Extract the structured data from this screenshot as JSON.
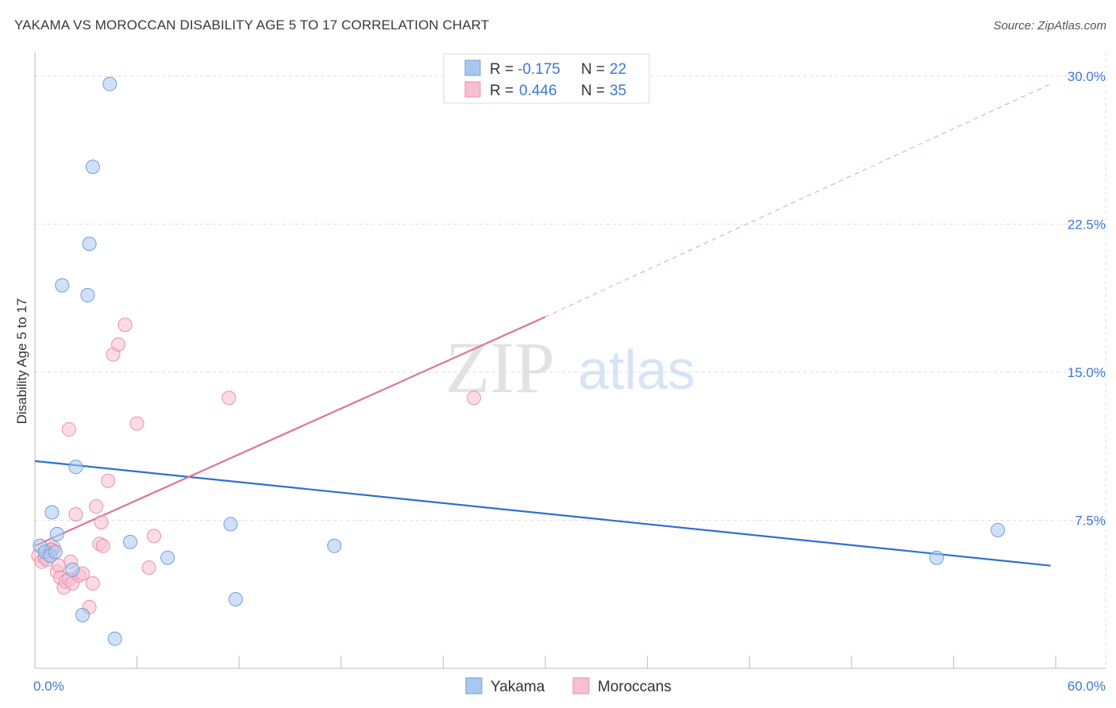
{
  "title": "YAKAMA VS MOROCCAN DISABILITY AGE 5 TO 17 CORRELATION CHART",
  "source": "Source: ZipAtlas.com",
  "watermark": {
    "zip": "ZIP",
    "atlas": "atlas"
  },
  "colors": {
    "yakama_fill": "#a9c8f0",
    "yakama_stroke": "#6d9fdc",
    "yakama_line": "#2f6fd0",
    "moroccan_fill": "#f7bfd0",
    "moroccan_stroke": "#e890ac",
    "moroccan_line": "#e0729a",
    "axis_text": "#3b78d8",
    "grid": "#dddddd"
  },
  "legend": {
    "rows": [
      {
        "r_label": "R =",
        "r_value": "-0.175",
        "n_label": "N =",
        "n_value": "22"
      },
      {
        "r_label": "R =",
        "r_value": "0.446",
        "n_label": "N =",
        "n_value": "35"
      }
    ]
  },
  "chart_data": {
    "type": "scatter",
    "title": "YAKAMA VS MOROCCAN DISABILITY AGE 5 TO 17 CORRELATION CHART",
    "xlabel": "",
    "ylabel": "Disability Age 5 to 17",
    "xlim": [
      0,
      60
    ],
    "ylim": [
      0,
      31.2
    ],
    "x_tick_labels": {
      "left": "0.0%",
      "right": "60.0%"
    },
    "y_ticks": [
      {
        "value": 7.5,
        "label": "7.5%"
      },
      {
        "value": 15.0,
        "label": "15.0%"
      },
      {
        "value": 22.5,
        "label": "22.5%"
      },
      {
        "value": 30.0,
        "label": "30.0%"
      }
    ],
    "grid": true,
    "legend_position": "top-center",
    "series": [
      {
        "name": "Yakama",
        "points": [
          [
            0.3,
            6.2
          ],
          [
            0.6,
            5.9
          ],
          [
            0.9,
            5.7
          ],
          [
            1.2,
            5.9
          ],
          [
            1.0,
            7.9
          ],
          [
            1.3,
            6.8
          ],
          [
            2.2,
            5.0
          ],
          [
            2.4,
            10.2
          ],
          [
            1.6,
            19.4
          ],
          [
            3.1,
            18.9
          ],
          [
            3.2,
            21.5
          ],
          [
            3.4,
            25.4
          ],
          [
            4.4,
            29.6
          ],
          [
            2.8,
            2.7
          ],
          [
            4.7,
            1.5
          ],
          [
            5.6,
            6.4
          ],
          [
            7.8,
            5.6
          ],
          [
            11.5,
            7.3
          ],
          [
            11.8,
            3.5
          ],
          [
            17.6,
            6.2
          ],
          [
            53.0,
            5.6
          ],
          [
            56.6,
            7.0
          ]
        ],
        "trend": {
          "x0": 0,
          "y0": 10.5,
          "x1": 59.7,
          "y1": 5.2
        }
      },
      {
        "name": "Moroccans",
        "points": [
          [
            0.2,
            5.7
          ],
          [
            0.4,
            5.4
          ],
          [
            0.6,
            5.6
          ],
          [
            0.8,
            5.8
          ],
          [
            0.9,
            6.0
          ],
          [
            1.1,
            6.1
          ],
          [
            1.3,
            4.9
          ],
          [
            1.4,
            5.2
          ],
          [
            1.5,
            4.6
          ],
          [
            1.7,
            4.1
          ],
          [
            1.8,
            4.4
          ],
          [
            2.0,
            4.5
          ],
          [
            2.1,
            5.4
          ],
          [
            2.2,
            4.3
          ],
          [
            2.4,
            7.8
          ],
          [
            2.6,
            4.7
          ],
          [
            2.8,
            4.8
          ],
          [
            3.2,
            3.1
          ],
          [
            3.4,
            4.3
          ],
          [
            3.6,
            8.2
          ],
          [
            3.8,
            6.3
          ],
          [
            3.9,
            7.4
          ],
          [
            4.0,
            6.2
          ],
          [
            4.3,
            9.5
          ],
          [
            4.6,
            15.9
          ],
          [
            4.9,
            16.4
          ],
          [
            5.3,
            17.4
          ],
          [
            6.0,
            12.4
          ],
          [
            6.7,
            5.1
          ],
          [
            7.0,
            6.7
          ],
          [
            11.4,
            13.7
          ],
          [
            25.8,
            13.7
          ],
          [
            2.0,
            12.1
          ],
          [
            1.0,
            6.0
          ],
          [
            0.7,
            5.5
          ]
        ],
        "trend": {
          "x0": 0,
          "y0": 6.2,
          "x1": 30.0,
          "y1": 17.8
        },
        "trend_extension": {
          "x0": 30.0,
          "y0": 17.8,
          "x1": 59.7,
          "y1": 29.6
        }
      }
    ]
  },
  "bottom_legend": [
    {
      "label": "Yakama"
    },
    {
      "label": "Moroccans"
    }
  ]
}
